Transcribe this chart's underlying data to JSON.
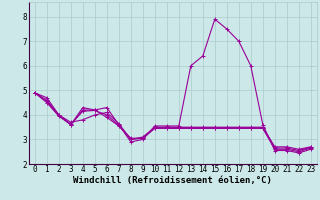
{
  "xlabel": "Windchill (Refroidissement éolien,°C)",
  "background_color": "#cce8e8",
  "grid_color": "#aacccc",
  "line_color": "#990099",
  "xlim": [
    -0.5,
    23.5
  ],
  "ylim": [
    2.0,
    8.6
  ],
  "xticks": [
    0,
    1,
    2,
    3,
    4,
    5,
    6,
    7,
    8,
    9,
    10,
    11,
    12,
    13,
    14,
    15,
    16,
    17,
    18,
    19,
    20,
    21,
    22,
    23
  ],
  "yticks": [
    2,
    3,
    4,
    5,
    6,
    7,
    8
  ],
  "series": [
    [
      4.9,
      4.7,
      4.0,
      3.6,
      4.3,
      4.2,
      4.3,
      3.6,
      2.9,
      3.0,
      3.55,
      3.55,
      3.55,
      6.0,
      6.4,
      7.9,
      7.5,
      7.0,
      6.0,
      3.6,
      2.55,
      2.55,
      2.45,
      2.6
    ],
    [
      4.9,
      4.6,
      4.0,
      3.7,
      3.8,
      4.0,
      4.1,
      3.65,
      3.0,
      3.1,
      3.5,
      3.5,
      3.5,
      3.5,
      3.5,
      3.5,
      3.5,
      3.5,
      3.5,
      3.5,
      2.7,
      2.7,
      2.6,
      2.7
    ],
    [
      4.9,
      4.5,
      3.95,
      3.6,
      4.2,
      4.2,
      3.9,
      3.55,
      3.05,
      3.05,
      3.45,
      3.45,
      3.45,
      3.45,
      3.45,
      3.45,
      3.45,
      3.45,
      3.45,
      3.45,
      2.6,
      2.6,
      2.5,
      2.65
    ],
    [
      4.9,
      4.55,
      3.98,
      3.62,
      4.15,
      4.18,
      4.0,
      3.58,
      3.0,
      3.05,
      3.48,
      3.48,
      3.48,
      3.48,
      3.48,
      3.48,
      3.48,
      3.48,
      3.48,
      3.48,
      2.65,
      2.65,
      2.55,
      2.68
    ]
  ],
  "marker": "+",
  "markersize": 3,
  "linewidth": 0.8,
  "font_family": "monospace",
  "tick_fontsize": 5.5,
  "xlabel_fontsize": 6.5
}
